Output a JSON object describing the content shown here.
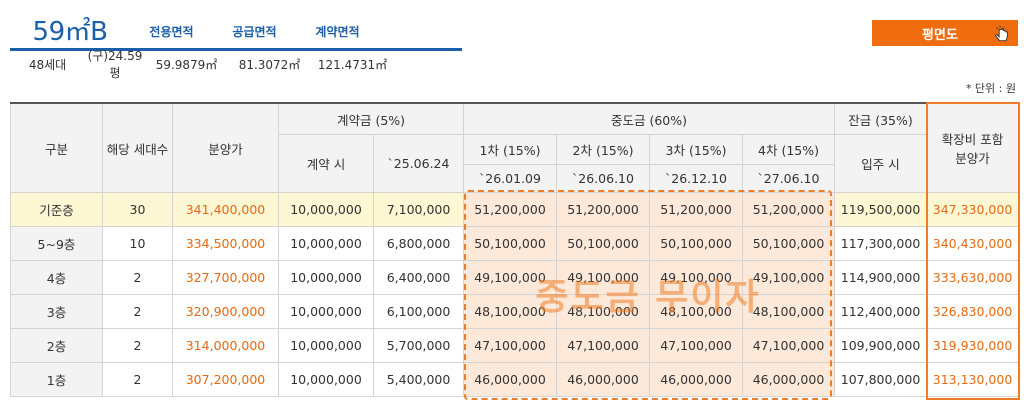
{
  "summary": {
    "type": "59㎡B",
    "headers": [
      "전용면적",
      "공급면적",
      "계약면적"
    ],
    "households": "48세대",
    "old_pyeong": "(구)24.59평",
    "exclusive_area": "59.9879㎡",
    "supply_area": "81.3072㎡",
    "contract_area": "121.4731㎡"
  },
  "plan_button": {
    "label": "평면도",
    "icon": "pointer-hand-icon"
  },
  "unit_note": "* 단위 : 원",
  "table": {
    "headers": {
      "category": "구분",
      "households": "해당 세대수",
      "sale_price": "분양가",
      "deposit": "계약금 (5%)",
      "deposit_at_contract": "계약 시",
      "deposit_date": "`25.06.24",
      "middle": "중도금 (60%)",
      "m1": "1차 (15%)",
      "m1_date": "`26.01.09",
      "m2": "2차 (15%)",
      "m2_date": "`26.06.10",
      "m3": "3차 (15%)",
      "m3_date": "`26.12.10",
      "m4": "4차 (15%)",
      "m4_date": "`27.06.10",
      "balance": "잔금 (35%)",
      "balance_when": "입주 시",
      "extension": "확장비 포함\n분양가"
    },
    "rows": [
      {
        "floor": "기준층",
        "count": "30",
        "price": "341,400,000",
        "d1": "10,000,000",
        "d2": "7,100,000",
        "m1": "51,200,000",
        "m2": "51,200,000",
        "m3": "51,200,000",
        "m4": "51,200,000",
        "bal": "119,500,000",
        "ext": "347,330,000"
      },
      {
        "floor": "5~9층",
        "count": "10",
        "price": "334,500,000",
        "d1": "10,000,000",
        "d2": "6,800,000",
        "m1": "50,100,000",
        "m2": "50,100,000",
        "m3": "50,100,000",
        "m4": "50,100,000",
        "bal": "117,300,000",
        "ext": "340,430,000"
      },
      {
        "floor": "4층",
        "count": "2",
        "price": "327,700,000",
        "d1": "10,000,000",
        "d2": "6,400,000",
        "m1": "49,100,000",
        "m2": "49,100,000",
        "m3": "49,100,000",
        "m4": "49,100,000",
        "bal": "114,900,000",
        "ext": "333,630,000"
      },
      {
        "floor": "3층",
        "count": "2",
        "price": "320,900,000",
        "d1": "10,000,000",
        "d2": "6,100,000",
        "m1": "48,100,000",
        "m2": "48,100,000",
        "m3": "48,100,000",
        "m4": "48,100,000",
        "bal": "112,400,000",
        "ext": "326,830,000"
      },
      {
        "floor": "2층",
        "count": "2",
        "price": "314,000,000",
        "d1": "10,000,000",
        "d2": "5,700,000",
        "m1": "47,100,000",
        "m2": "47,100,000",
        "m3": "47,100,000",
        "m4": "47,100,000",
        "bal": "109,900,000",
        "ext": "319,930,000"
      },
      {
        "floor": "1층",
        "count": "2",
        "price": "307,200,000",
        "d1": "10,000,000",
        "d2": "5,400,000",
        "m1": "46,000,000",
        "m2": "46,000,000",
        "m3": "46,000,000",
        "m4": "46,000,000",
        "bal": "107,800,000",
        "ext": "313,130,000"
      }
    ]
  },
  "overlay_label": "중도금 무이자",
  "colors": {
    "accent": "#ef6d0e",
    "blue": "#1a5fa8",
    "highlight_row": "#fdf7d4",
    "middle_fill": "#fde9d9"
  }
}
